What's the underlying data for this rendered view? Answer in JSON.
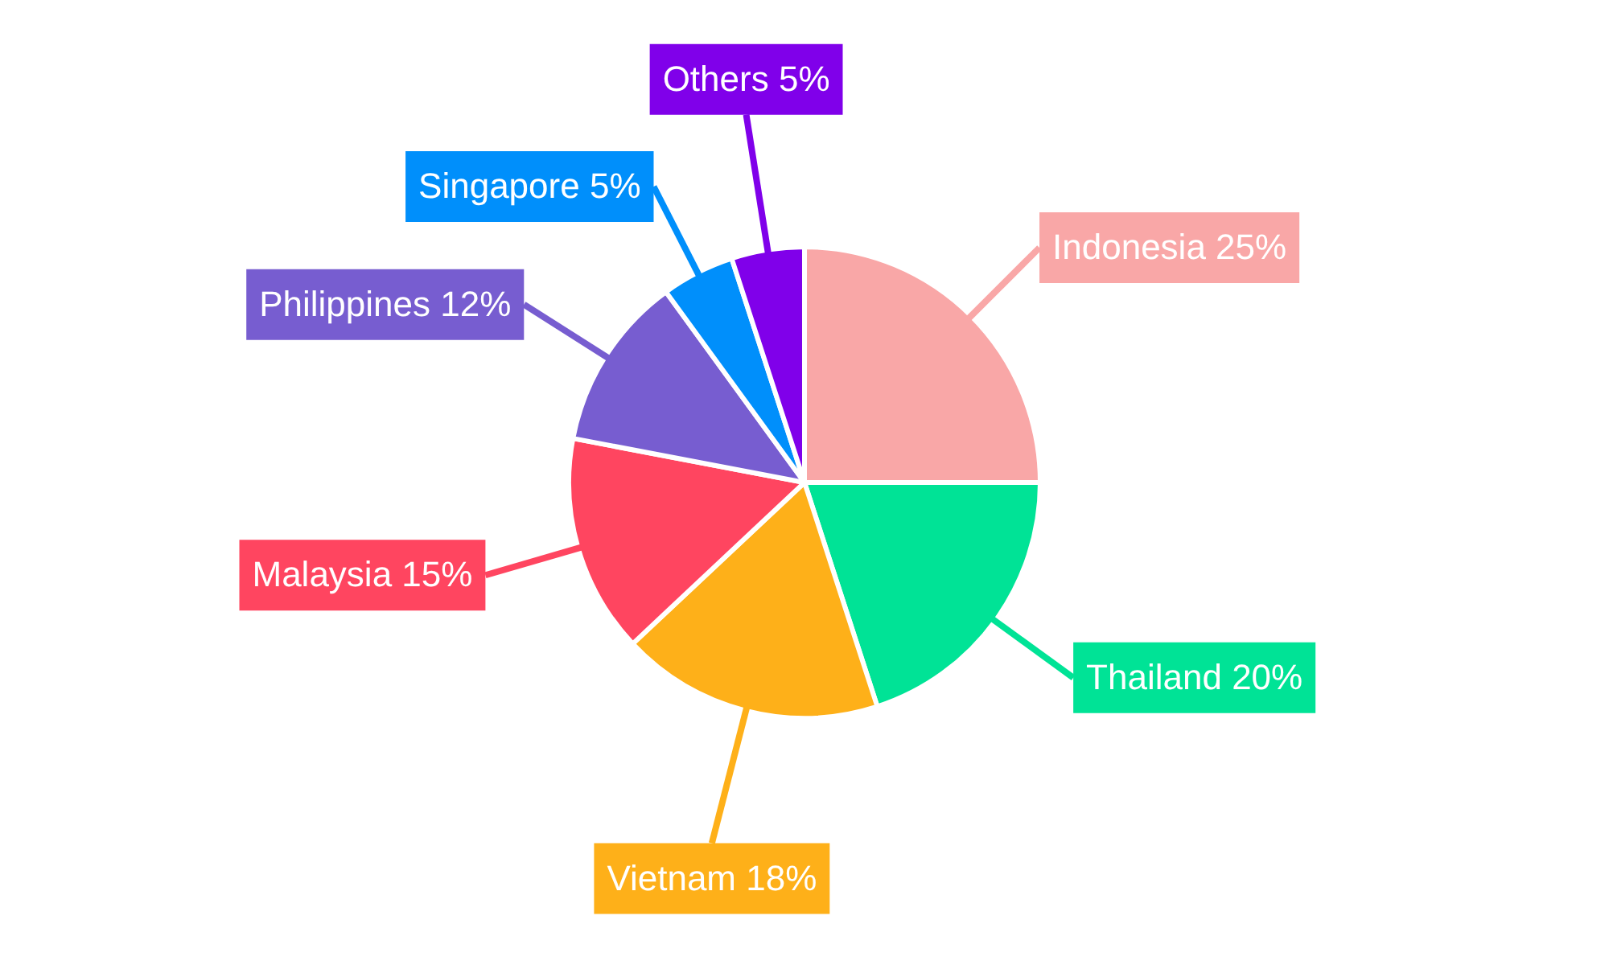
{
  "chart_data": {
    "type": "pie",
    "categories": [
      "Indonesia",
      "Thailand",
      "Vietnam",
      "Malaysia",
      "Philippines",
      "Singapore",
      "Others"
    ],
    "values": [
      25,
      20,
      18,
      15,
      12,
      5,
      5
    ],
    "value_labels": [
      "25%",
      "20%",
      "18%",
      "15%",
      "12%",
      "5%",
      "5%"
    ],
    "colors": [
      "#f9a7a7",
      "#00e396",
      "#feb019",
      "#ff4560",
      "#775dd0",
      "#008ffb",
      "#8000ea"
    ],
    "legend": false
  }
}
